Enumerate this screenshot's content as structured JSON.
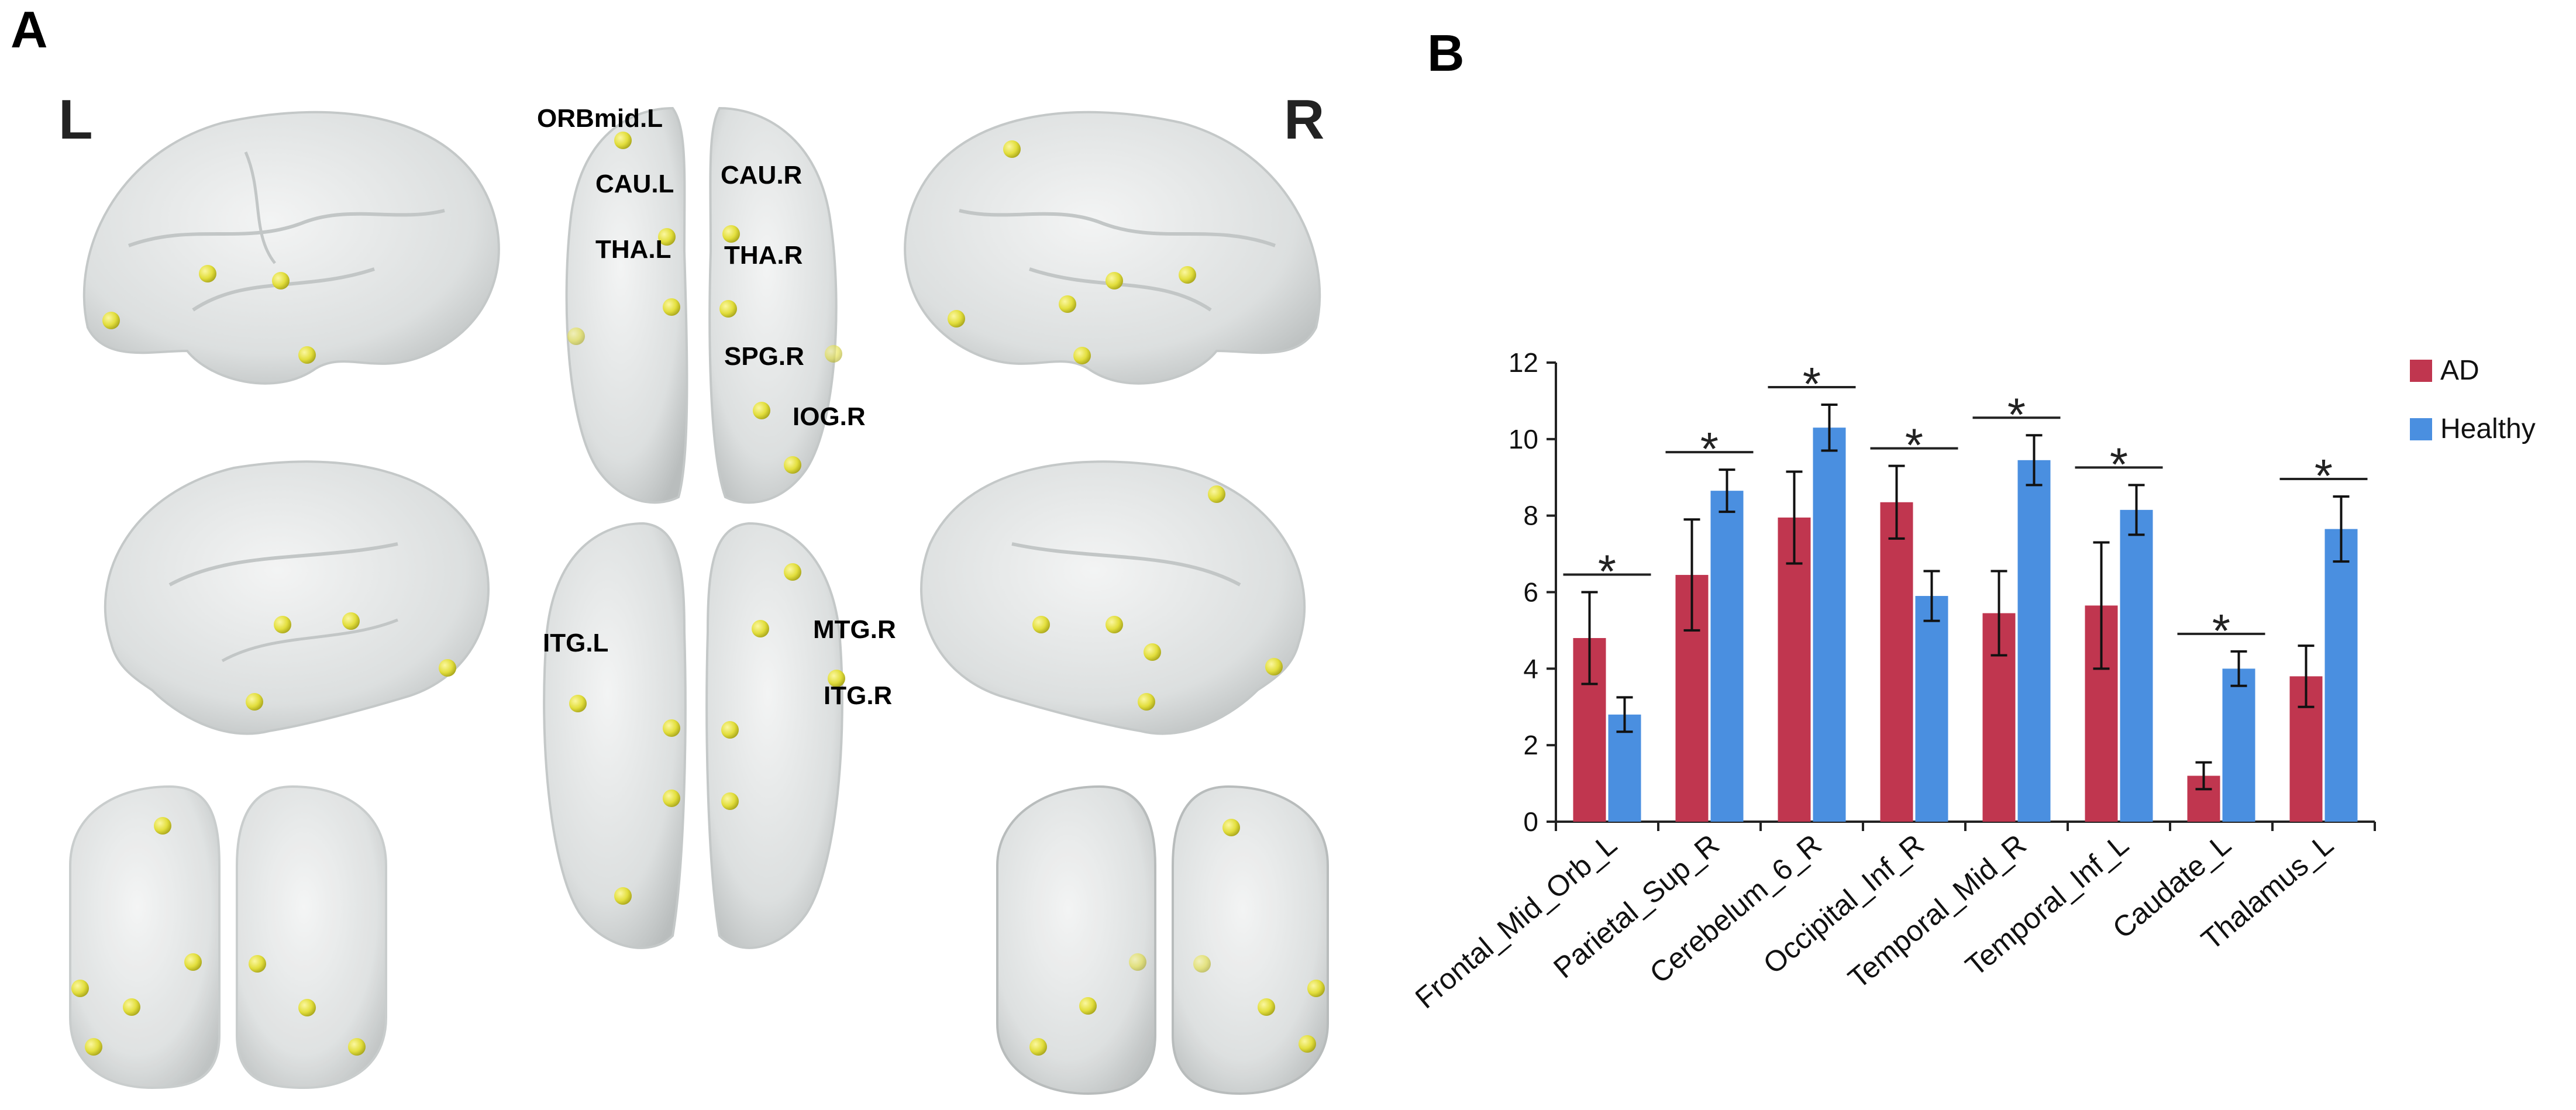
{
  "panels": {
    "a_label": "A",
    "b_label": "B"
  },
  "brain": {
    "left_label": "L",
    "right_label": "R",
    "regions": {
      "orbmid_l": "ORBmid.L",
      "cau_l": "CAU.L",
      "cau_r": "CAU.R",
      "tha_l": "THA.L",
      "tha_r": "THA.R",
      "spg_r": "SPG.R",
      "iog_r": "IOG.R",
      "itg_l": "ITG.L",
      "mtg_r": "MTG.R",
      "itg_r": "ITG.R"
    },
    "colors": {
      "cortex": "#dfe1e1",
      "node": "#e6e34a"
    }
  },
  "chart_data": {
    "type": "bar",
    "categories": [
      "Frontal_Mid_Orb_L",
      "Parietal_Sup_R",
      "Cerebelum_6_R",
      "Occipital_Inf_R",
      "Temporal_Mid_R",
      "Temporal_Inf_L",
      "Caudate_L",
      "Thalamus_L"
    ],
    "series": [
      {
        "name": "AD",
        "color": "#c0364f",
        "values": [
          4.8,
          6.45,
          7.95,
          8.35,
          5.45,
          5.65,
          1.2,
          3.8
        ],
        "errors": [
          1.2,
          1.45,
          1.2,
          0.95,
          1.1,
          1.65,
          0.35,
          0.8
        ]
      },
      {
        "name": "Healthy",
        "color": "#4a8fe0",
        "values": [
          2.8,
          8.65,
          10.3,
          5.9,
          9.45,
          8.15,
          4.0,
          7.65
        ],
        "errors": [
          0.45,
          0.55,
          0.6,
          0.65,
          0.65,
          0.65,
          0.45,
          0.85
        ]
      }
    ],
    "significance": [
      "*",
      "*",
      "*",
      "*",
      "*",
      "*",
      "*",
      "*"
    ],
    "ylim": [
      0,
      12
    ],
    "yticks": [
      "0",
      "2",
      "4",
      "6",
      "8",
      "10",
      "12"
    ],
    "title": "",
    "xlabel": "",
    "ylabel": "",
    "legend_position": "top-right",
    "grid": false
  }
}
